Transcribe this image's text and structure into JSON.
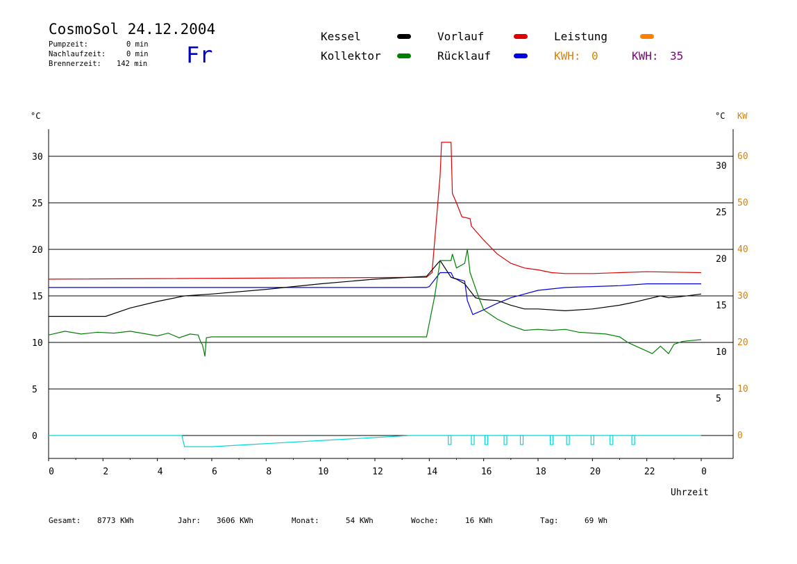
{
  "header": {
    "title": "CosmoSol 24.12.2004",
    "weekday": "Fr",
    "stats": [
      {
        "label": "Pumpzeit:",
        "value": "0 min"
      },
      {
        "label": "Nachlaufzeit:",
        "value": "0 min"
      },
      {
        "label": "Brennerzeit:",
        "value": "142 min"
      }
    ]
  },
  "legend": {
    "items": [
      {
        "label": "Kessel",
        "color": "#000000"
      },
      {
        "label": "Vorlauf",
        "color": "#e00000"
      },
      {
        "label": "Leistung",
        "color": "#ff8000"
      },
      {
        "label": "Kollektor",
        "color": "#008000"
      },
      {
        "label": "Rücklauf",
        "color": "#0000e0"
      }
    ],
    "kwh1": {
      "label": "KWH:",
      "value": "0",
      "color": "#e08000"
    },
    "kwh2": {
      "label": "KWH:",
      "value": "35",
      "color": "#800080"
    }
  },
  "axes": {
    "y_left_unit": "°C",
    "y_right_unit": "°C",
    "y_right2_unit": "KW",
    "x_label": "Uhrzeit",
    "x_ticks": [
      "0",
      "2",
      "4",
      "6",
      "8",
      "10",
      "12",
      "14",
      "16",
      "18",
      "20",
      "22",
      "0"
    ],
    "y_left_ticks": [
      "0",
      "5",
      "10",
      "15",
      "20",
      "25",
      "30"
    ],
    "y_right_ticks": [
      "5",
      "10",
      "15",
      "20",
      "25",
      "30"
    ],
    "y_right2_ticks": [
      "0",
      "10",
      "20",
      "30",
      "40",
      "50",
      "60"
    ],
    "right2_color": "#e08000"
  },
  "footer": [
    {
      "label": "Gesamt:",
      "value": "8773 KWh"
    },
    {
      "label": "Jahr:",
      "value": "3606 KWh"
    },
    {
      "label": "Monat:",
      "value": "54 KWh"
    },
    {
      "label": "Woche:",
      "value": "16 KWh"
    },
    {
      "label": "Tag:",
      "value": "69 Wh"
    }
  ],
  "chart_data": {
    "type": "line",
    "xlabel": "Uhrzeit",
    "ylabel": "°C",
    "xlim": [
      0,
      24
    ],
    "ylim": [
      -2.5,
      32
    ],
    "grid": true,
    "series": [
      {
        "name": "Vorlauf",
        "color": "#e00000",
        "x": [
          0,
          13.9,
          14.1,
          14.4,
          14.45,
          14.8,
          14.85,
          15.0,
          15.2,
          15.5,
          15.55,
          16.0,
          16.5,
          17.0,
          17.5,
          18.0,
          18.5,
          19.0,
          20.0,
          21.0,
          22.0,
          24.0
        ],
        "y": [
          16.8,
          17.0,
          17.5,
          28.0,
          31.5,
          31.5,
          26.0,
          25.0,
          23.5,
          23.3,
          22.5,
          21.0,
          19.5,
          18.5,
          18.0,
          17.8,
          17.5,
          17.4,
          17.4,
          17.5,
          17.6,
          17.5
        ]
      },
      {
        "name": "Rücklauf",
        "color": "#0000e0",
        "x": [
          0,
          3,
          6,
          13.9,
          14.0,
          14.4,
          14.8,
          14.9,
          15.3,
          15.4,
          15.6,
          16.0,
          16.5,
          17.0,
          18.0,
          19.0,
          20.0,
          21.0,
          22.0,
          24.0
        ],
        "y": [
          15.9,
          15.9,
          15.9,
          15.9,
          16.0,
          17.5,
          17.5,
          16.9,
          16.6,
          14.5,
          13.0,
          13.5,
          14.2,
          14.8,
          15.6,
          15.9,
          16.0,
          16.1,
          16.3,
          16.3
        ]
      },
      {
        "name": "Kessel",
        "color": "#000000",
        "x": [
          0,
          2.1,
          3.0,
          4.0,
          5.0,
          6.0,
          8.0,
          10.0,
          12.0,
          13.9,
          14.4,
          14.8,
          15.0,
          15.3,
          15.7,
          16.0,
          16.5,
          17.0,
          17.5,
          18.0,
          19.0,
          20.0,
          21.0,
          21.5,
          22.5,
          22.8,
          23.2,
          24.0
        ],
        "y": [
          12.8,
          12.8,
          13.7,
          14.4,
          15.0,
          15.2,
          15.7,
          16.3,
          16.8,
          17.1,
          18.8,
          17.0,
          16.8,
          16.3,
          14.8,
          14.6,
          14.5,
          14.0,
          13.6,
          13.6,
          13.4,
          13.6,
          14.0,
          14.3,
          15.0,
          14.8,
          14.9,
          15.2
        ]
      },
      {
        "name": "Kollektor",
        "color": "#008000",
        "x": [
          0,
          0.6,
          1.2,
          1.8,
          2.4,
          3.0,
          3.6,
          4.0,
          4.4,
          4.8,
          5.2,
          5.5,
          5.6,
          5.65,
          5.7,
          5.75,
          5.8,
          6.0,
          8.0,
          10.0,
          12.0,
          13.9,
          14.2,
          14.4,
          14.8,
          14.85,
          15.0,
          15.3,
          15.4,
          15.5,
          15.8,
          16.0,
          16.5,
          17.0,
          17.5,
          18.0,
          18.5,
          19.0,
          19.5,
          20.0,
          20.5,
          21.0,
          21.3,
          21.6,
          21.9,
          22.2,
          22.5,
          22.8,
          23.0,
          23.3,
          23.6,
          24.0
        ],
        "y": [
          10.8,
          11.2,
          10.9,
          11.1,
          11.0,
          11.2,
          10.9,
          10.7,
          11.0,
          10.5,
          10.9,
          10.8,
          10.0,
          9.8,
          9.2,
          8.5,
          10.5,
          10.6,
          10.6,
          10.6,
          10.6,
          10.6,
          15.0,
          18.8,
          18.8,
          19.5,
          18.0,
          18.5,
          20.0,
          17.5,
          15.0,
          13.5,
          12.5,
          11.8,
          11.3,
          11.4,
          11.3,
          11.4,
          11.1,
          11.0,
          10.9,
          10.6,
          10.0,
          9.6,
          9.2,
          8.8,
          9.6,
          8.8,
          9.8,
          10.1,
          10.2,
          10.3
        ]
      },
      {
        "name": "Leistung",
        "color": "#00d8d8",
        "x": [
          0,
          4.9,
          5.0,
          6.0,
          13.3,
          13.4,
          24.0
        ],
        "y": [
          0,
          0,
          -1.2,
          -1.2,
          0,
          0,
          0
        ],
        "pulses": [
          14.75,
          15.6,
          16.1,
          16.8,
          17.4,
          18.5,
          19.1,
          20.0,
          20.7,
          21.5
        ]
      }
    ]
  }
}
